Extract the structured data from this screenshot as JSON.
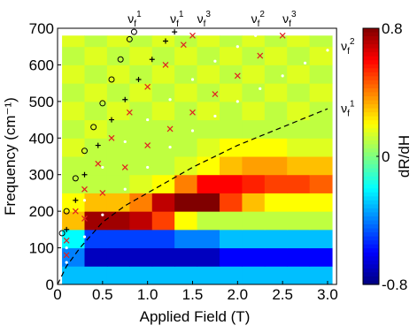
{
  "chart_data": {
    "type": "heatmap",
    "xlabel": "Applied Field (T)",
    "ylabel": "Frequency (cm⁻¹)",
    "xlim": [
      0,
      3.1
    ],
    "ylim": [
      0,
      700
    ],
    "xticks": [
      0,
      0.5,
      {
        "value": 1.0,
        "label": "1.0"
      },
      1.5,
      {
        "value": 2.0,
        "label": "2.0"
      },
      2.5,
      {
        "value": 3.0,
        "label": "3.0"
      }
    ],
    "yticks": [
      0,
      100,
      200,
      300,
      400,
      500,
      600,
      700
    ],
    "x_edges": [
      0.05,
      0.3,
      0.55,
      0.8,
      1.05,
      1.3,
      1.55,
      1.8,
      2.05,
      2.3,
      2.55,
      2.8,
      3.05
    ],
    "y_edges": [
      0,
      50,
      100,
      150,
      200,
      250,
      300,
      350,
      400,
      450,
      500,
      550,
      600,
      650,
      680
    ],
    "z": [
      [
        -0.3,
        -0.3,
        -0.3,
        -0.3,
        -0.3,
        -0.3,
        -0.3,
        -0.3,
        -0.3,
        -0.3,
        -0.3,
        -0.3
      ],
      [
        -0.4,
        -0.7,
        -0.7,
        -0.7,
        -0.7,
        -0.7,
        -0.7,
        -0.6,
        -0.6,
        -0.6,
        -0.6,
        -0.6
      ],
      [
        -0.2,
        -0.5,
        -0.5,
        -0.5,
        -0.5,
        -0.4,
        -0.4,
        -0.3,
        -0.3,
        -0.3,
        -0.3,
        -0.3
      ],
      [
        0.3,
        0.75,
        0.75,
        0.7,
        0.5,
        0.2,
        0.1,
        0.1,
        0.1,
        0.1,
        0.1,
        0.1
      ],
      [
        0.2,
        0.3,
        0.3,
        0.4,
        0.7,
        0.8,
        0.8,
        0.5,
        0.3,
        0.2,
        0.2,
        0.2
      ],
      [
        0.1,
        0.1,
        0.1,
        0.15,
        0.2,
        0.4,
        0.6,
        0.6,
        0.55,
        0.5,
        0.5,
        0.45
      ],
      [
        0.1,
        0.1,
        0.1,
        0.1,
        0.1,
        0.15,
        0.2,
        0.3,
        0.35,
        0.35,
        0.3,
        0.3
      ],
      [
        0.15,
        0.1,
        0.1,
        0.1,
        0.1,
        0.1,
        0.15,
        0.2,
        0.2,
        0.2,
        0.15,
        0.15
      ],
      [
        0.1,
        0.15,
        0.1,
        0.1,
        0.1,
        0.1,
        0.1,
        0.1,
        0.1,
        0.1,
        0.1,
        0.1
      ],
      [
        0.15,
        0.1,
        0.15,
        0.1,
        0.15,
        0.1,
        0.15,
        0.1,
        0.15,
        0.1,
        0.15,
        0.1
      ],
      [
        0.1,
        0.15,
        0.1,
        0.15,
        0.1,
        0.15,
        0.1,
        0.15,
        0.1,
        0.15,
        0.1,
        0.15
      ],
      [
        0.15,
        0.1,
        0.15,
        0.1,
        0.15,
        0.1,
        0.15,
        0.1,
        0.15,
        0.1,
        0.15,
        0.1
      ],
      [
        0.1,
        0.15,
        0.1,
        0.15,
        0.1,
        0.15,
        0.1,
        0.15,
        0.1,
        0.15,
        0.1,
        0.15
      ],
      [
        0.15,
        0.1,
        0.15,
        0.1,
        0.15,
        0.1,
        0.15,
        0.1,
        0.15,
        0.1,
        0.15,
        0.1
      ]
    ],
    "zlim": [
      -0.8,
      0.8
    ],
    "zticks": [
      -0.8,
      0,
      0.8
    ],
    "zlabel": "dR/dH",
    "series": [
      {
        "marker": "circle",
        "color": "#000000",
        "x": [
          0.05,
          0.1,
          0.2,
          0.3,
          0.4,
          0.5,
          0.6,
          0.7,
          0.8,
          0.85
        ],
        "values": [
          140,
          200,
          290,
          365,
          430,
          495,
          560,
          615,
          670,
          690
        ]
      },
      {
        "marker": "plus",
        "color": "#000000",
        "x": [
          0.1,
          0.2,
          0.3,
          0.45,
          0.6,
          0.75,
          0.9,
          1.05,
          1.2,
          1.3
        ],
        "values": [
          150,
          230,
          300,
          380,
          450,
          505,
          560,
          615,
          665,
          690
        ]
      },
      {
        "marker": "cross",
        "color": "#e02020",
        "x": [
          0.1,
          0.2,
          0.3,
          0.45,
          0.6,
          0.8,
          1.0,
          1.2,
          1.4,
          1.5
        ],
        "values": [
          120,
          200,
          260,
          330,
          400,
          470,
          540,
          600,
          655,
          680
        ]
      },
      {
        "marker": "dot",
        "color": "#ffffff",
        "x": [
          0.1,
          0.3,
          0.5,
          0.75,
          1.0,
          1.25,
          1.5,
          1.75,
          2.0,
          2.2
        ],
        "values": [
          100,
          230,
          320,
          390,
          450,
          505,
          560,
          610,
          650,
          680
        ]
      },
      {
        "marker": "cross",
        "color": "#e02020",
        "x": [
          0.1,
          0.3,
          0.5,
          0.75,
          1.0,
          1.25,
          1.5,
          1.75,
          2.0,
          2.25,
          2.5
        ],
        "values": [
          80,
          180,
          250,
          320,
          380,
          425,
          470,
          520,
          570,
          625,
          680
        ]
      },
      {
        "marker": "dot",
        "color": "#ffffff",
        "x": [
          0.1,
          0.3,
          0.5,
          0.75,
          1.0,
          1.25,
          1.5,
          1.75,
          2.0,
          2.25,
          2.5,
          2.75,
          3.0
        ],
        "values": [
          60,
          130,
          190,
          260,
          320,
          375,
          420,
          460,
          500,
          535,
          570,
          605,
          640
        ]
      },
      {
        "marker": "dash",
        "color": "#000000",
        "x": [
          0,
          0.1,
          0.25,
          0.5,
          0.75,
          1.0,
          1.5,
          2.0,
          2.5,
          3.0
        ],
        "values": [
          0,
          50,
          100,
          170,
          215,
          250,
          320,
          380,
          430,
          480
        ]
      }
    ],
    "annotations": [
      {
        "base": "ν",
        "sub": "f",
        "sup": "1"
      },
      {
        "base": "ν",
        "sub": "f",
        "sup": "1"
      },
      {
        "base": "ν",
        "sub": "f",
        "sup": "3"
      },
      {
        "base": "ν",
        "sub": "f",
        "sup": "2"
      },
      {
        "base": "ν",
        "sub": "f",
        "sup": "3"
      },
      {
        "base": "ν",
        "sub": "f",
        "sup": "2"
      },
      {
        "base": "ν",
        "sub": "f",
        "sup": "1"
      }
    ]
  }
}
